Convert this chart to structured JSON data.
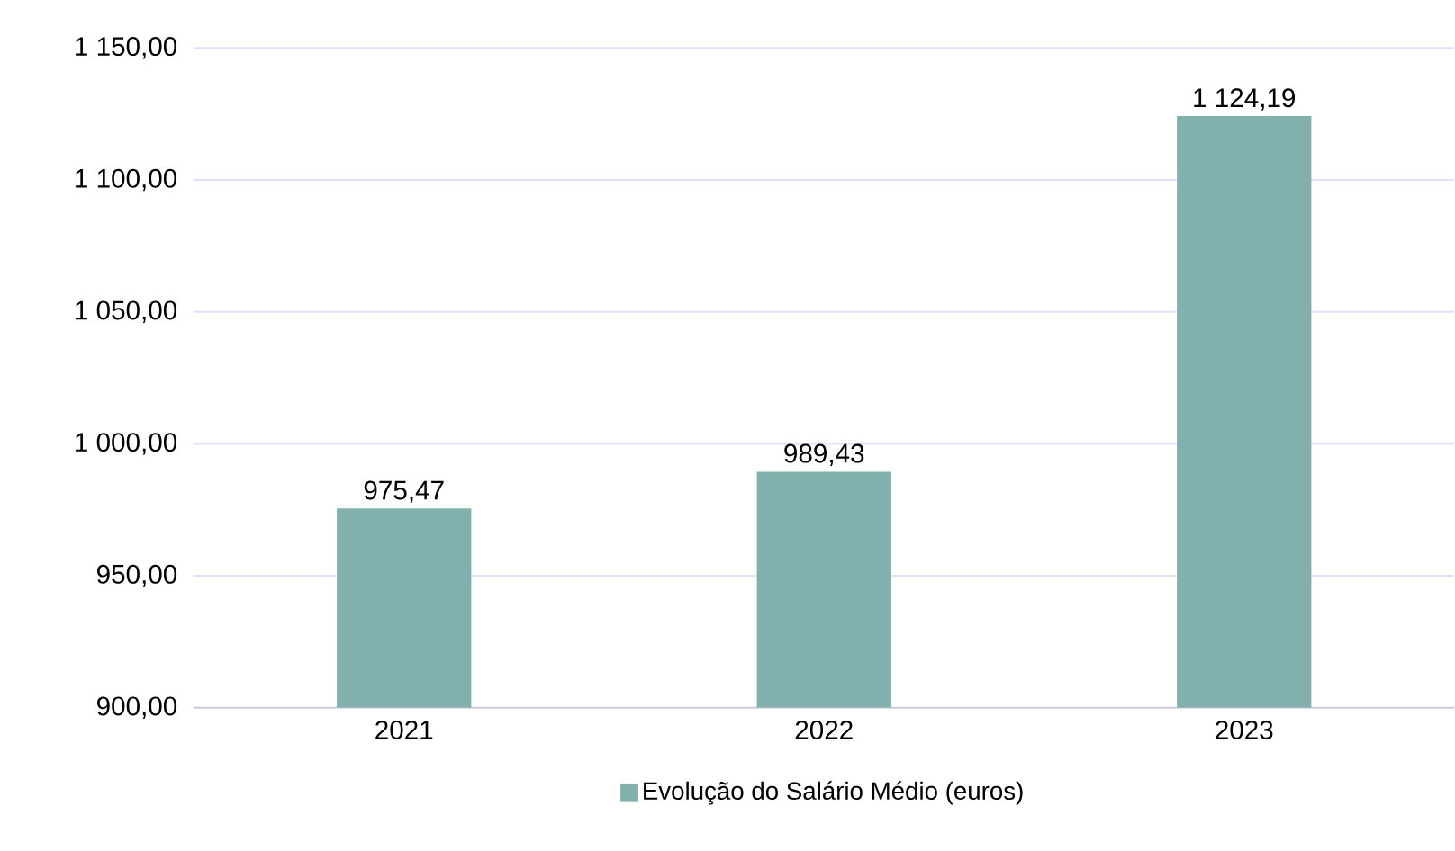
{
  "chart_data": {
    "type": "bar",
    "categories": [
      "2021",
      "2022",
      "2023"
    ],
    "series": [
      {
        "name": "Evolução do Salário Médio (euros)",
        "color": "#82b0ad",
        "values": [
          975.47,
          989.43,
          1124.19
        ],
        "value_labels": [
          "975,47",
          "989,43",
          "1 124,19"
        ]
      }
    ],
    "ylim": [
      900,
      1150
    ],
    "yticks": [
      {
        "value": 900,
        "label": "900,00"
      },
      {
        "value": 950,
        "label": "950,00"
      },
      {
        "value": 1000,
        "label": "1 000,00"
      },
      {
        "value": 1050,
        "label": "1 050,00"
      },
      {
        "value": 1100,
        "label": "1 100,00"
      },
      {
        "value": 1150,
        "label": "1 150,00"
      }
    ],
    "grid": "y",
    "legend": "bottom"
  }
}
